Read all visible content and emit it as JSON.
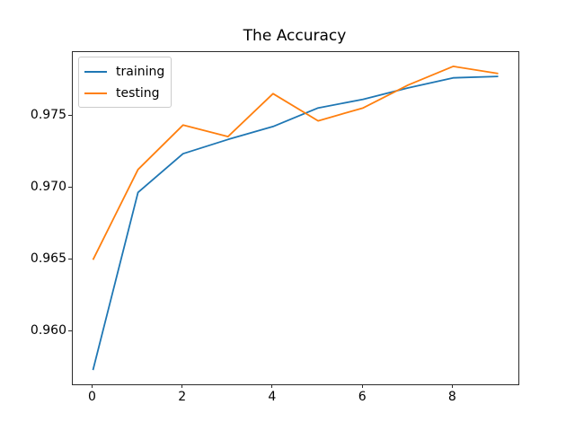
{
  "chart_data": {
    "type": "line",
    "title": "The Accuracy",
    "xlabel": "",
    "ylabel": "",
    "x": [
      0,
      1,
      2,
      3,
      4,
      5,
      6,
      7,
      8,
      9
    ],
    "series": [
      {
        "name": "training",
        "color": "#1f77b4",
        "values": [
          0.9573,
          0.9697,
          0.9724,
          0.9734,
          0.9743,
          0.9756,
          0.9762,
          0.977,
          0.9777,
          0.9778
        ]
      },
      {
        "name": "testing",
        "color": "#ff7f0e",
        "values": [
          0.965,
          0.9713,
          0.9744,
          0.9736,
          0.9766,
          0.9747,
          0.9756,
          0.9772,
          0.9785,
          0.978
        ]
      }
    ],
    "xlim": [
      -0.45,
      9.45
    ],
    "ylim": [
      0.9563,
      0.9795
    ],
    "x_ticks": [
      0,
      2,
      4,
      6,
      8
    ],
    "x_tick_labels": [
      "0",
      "2",
      "4",
      "6",
      "8"
    ],
    "y_ticks": [
      0.96,
      0.965,
      0.97,
      0.975
    ],
    "y_tick_labels": [
      "0.960",
      "0.965",
      "0.970",
      "0.975"
    ],
    "grid": false,
    "legend_position": "upper left",
    "line_width": 1.8
  }
}
